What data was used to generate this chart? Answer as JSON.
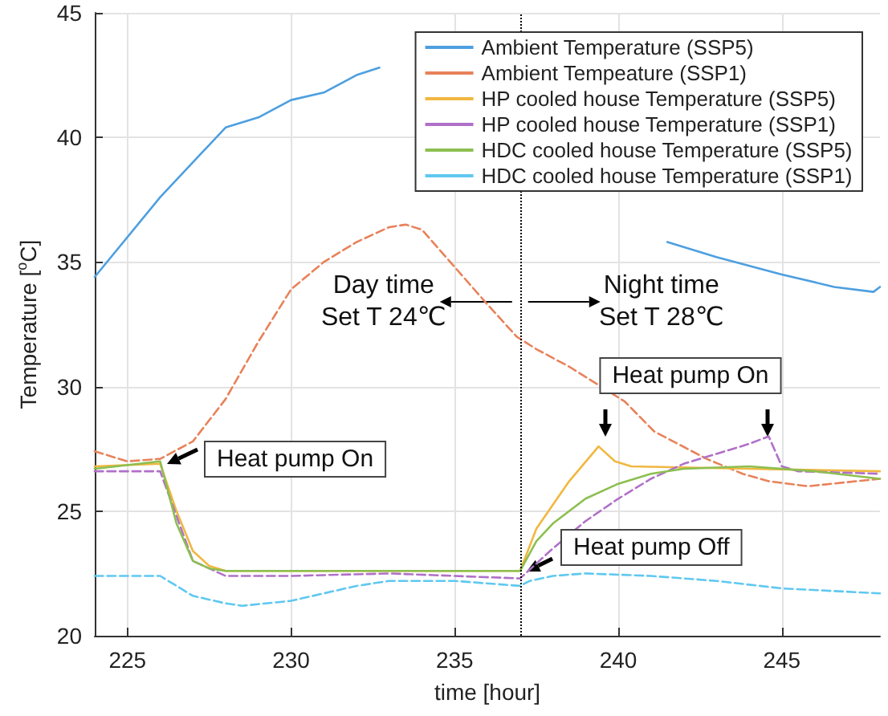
{
  "chart_data": {
    "type": "line",
    "xlabel": "time [hour]",
    "ylabel": "Temperature [$^{o}$C]",
    "xlim": [
      224,
      248
    ],
    "xticks": [
      225,
      230,
      235,
      240,
      245
    ],
    "ylim": [
      20,
      45
    ],
    "yticks": [
      20,
      25,
      30,
      35,
      40,
      45
    ],
    "grid": true,
    "legend": "top right",
    "series": [
      {
        "name": "Ambient Temperature (SSP5)",
        "color": "#4d9fe0",
        "line_style": "solid",
        "x": [
          224,
          226,
          228,
          229,
          230,
          231,
          232,
          232.7,
          233,
          240.6,
          241.5,
          243,
          245,
          246.6,
          247.8,
          248
        ],
        "values": [
          34.4,
          37.6,
          40.4,
          40.8,
          41.5,
          41.8,
          42.5,
          42.8,
          null,
          null,
          35.8,
          35.2,
          34.5,
          34.0,
          33.8,
          34.0
        ]
      },
      {
        "name": "Ambient Tempeature (SSP1)",
        "color": "#e8825a",
        "line_style": "dashed",
        "x": [
          224,
          225,
          226,
          227,
          228,
          229,
          230,
          231,
          232,
          233,
          233.5,
          234,
          235,
          236,
          236.9,
          237.5,
          238.5,
          240.2,
          241.1,
          242.7,
          243.8,
          244.6,
          245.8,
          248
        ],
        "values": [
          27.4,
          27.0,
          27.1,
          27.8,
          29.5,
          31.8,
          33.9,
          35.0,
          35.8,
          36.4,
          36.5,
          36.3,
          34.8,
          33.3,
          32.0,
          31.5,
          30.8,
          29.4,
          28.2,
          27.1,
          26.5,
          26.2,
          26.0,
          26.3
        ]
      },
      {
        "name": "HP cooled house Temperature (SSP5)",
        "color": "#f0b840",
        "line_style": "solid",
        "x": [
          224,
          226,
          226.5,
          227,
          227.5,
          228,
          232,
          237,
          237.5,
          238.5,
          239.4,
          239.9,
          240.4,
          244,
          248
        ],
        "values": [
          26.8,
          26.9,
          25.0,
          23.4,
          22.8,
          22.6,
          22.6,
          22.6,
          24.3,
          26.2,
          27.6,
          27.0,
          26.8,
          26.7,
          26.6
        ]
      },
      {
        "name": "HP cooled house Temperature (SSP1)",
        "color": "#b070c8",
        "line_style": "dashed",
        "x": [
          224,
          226,
          226.5,
          227,
          228,
          230,
          233,
          237,
          238,
          239,
          240,
          241,
          242,
          243,
          244,
          244.6,
          245,
          245.5,
          248
        ],
        "values": [
          26.6,
          26.6,
          24.8,
          23.0,
          22.4,
          22.4,
          22.5,
          22.3,
          23.5,
          24.6,
          25.5,
          26.3,
          26.9,
          27.3,
          27.7,
          28.0,
          26.8,
          26.6,
          26.5
        ]
      },
      {
        "name": "HDC cooled house Temperature (SSP5)",
        "color": "#8cbf50",
        "line_style": "solid",
        "x": [
          224,
          226,
          226.5,
          227,
          227.5,
          228,
          237,
          237.5,
          238,
          239,
          240,
          241,
          242,
          244,
          246,
          248
        ],
        "values": [
          26.7,
          27.0,
          24.5,
          23.0,
          22.7,
          22.6,
          22.6,
          23.8,
          24.5,
          25.5,
          26.1,
          26.5,
          26.7,
          26.8,
          26.6,
          26.3
        ]
      },
      {
        "name": "HDC cooled house Temperature (SSP1)",
        "color": "#5fc8f0",
        "line_style": "dashed",
        "x": [
          224,
          226,
          226.5,
          227,
          228,
          228.5,
          230,
          231,
          232,
          233,
          235,
          237,
          237.3,
          238,
          239,
          241,
          243,
          245,
          248
        ],
        "values": [
          22.4,
          22.4,
          22.0,
          21.6,
          21.3,
          21.2,
          21.4,
          21.7,
          22.0,
          22.2,
          22.2,
          22.0,
          22.2,
          22.4,
          22.5,
          22.4,
          22.2,
          21.9,
          21.7
        ]
      }
    ],
    "ref_lines": [
      {
        "axis": "x",
        "value": 237,
        "color": "#000000",
        "line_style": "dotted"
      }
    ],
    "annotations": [
      "Day time\nSet T 24℃",
      "Night time\nSet T 28℃",
      "Heat pump On",
      "Heat pump On",
      "Heat pump Off"
    ]
  }
}
